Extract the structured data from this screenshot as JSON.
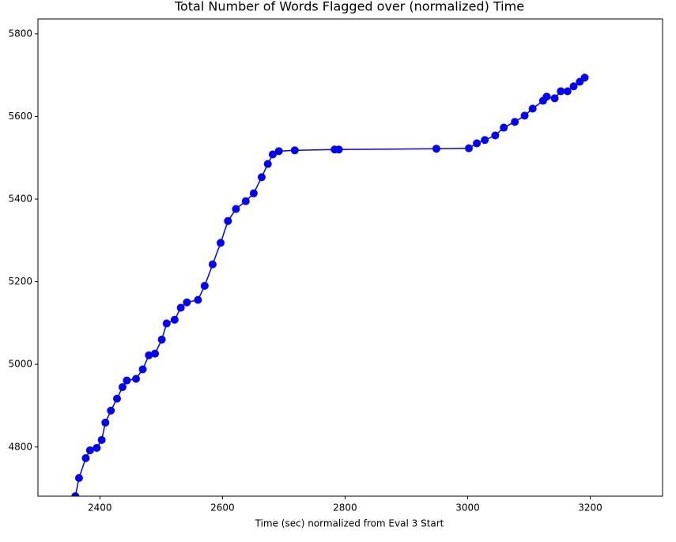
{
  "chart_data": {
    "type": "line",
    "title": "Total Number of Words Flagged over (normalized) Time",
    "x_label": "Time (sec) normalized from Eval 3 Start",
    "xlim": [
      2299,
      3318
    ],
    "ylim": [
      4681,
      5836
    ],
    "xticks": [
      2400,
      2600,
      2800,
      3000,
      3200
    ],
    "yticks": [
      4800,
      5000,
      5200,
      5400,
      5600,
      5800
    ],
    "series": [
      {
        "color": "#0000ff",
        "x": [
          2360,
          2366,
          2377,
          2384,
          2395,
          2403,
          2409,
          2418,
          2428,
          2437,
          2444,
          2459,
          2470,
          2480,
          2490,
          2501,
          2509,
          2522,
          2532,
          2542,
          2560,
          2571,
          2584,
          2597,
          2609,
          2622,
          2638,
          2651,
          2664,
          2674,
          2682,
          2692,
          2718,
          2783,
          2790,
          2949,
          3002,
          3015,
          3028,
          3045,
          3059,
          3077,
          3093,
          3106,
          3123,
          3129,
          3142,
          3152,
          3163,
          3173,
          3183,
          3191
        ],
        "values": [
          4681,
          4725,
          4773,
          4792,
          4798,
          4817,
          4859,
          4888,
          4917,
          4945,
          4961,
          4965,
          4988,
          5022,
          5026,
          5060,
          5099,
          5108,
          5137,
          5150,
          5156,
          5190,
          5242,
          5294,
          5347,
          5376,
          5395,
          5414,
          5453,
          5485,
          5508,
          5516,
          5518,
          5520,
          5520,
          5522,
          5523,
          5535,
          5543,
          5554,
          5573,
          5587,
          5602,
          5619,
          5638,
          5648,
          5644,
          5661,
          5661,
          5673,
          5684,
          5694
        ]
      }
    ]
  }
}
